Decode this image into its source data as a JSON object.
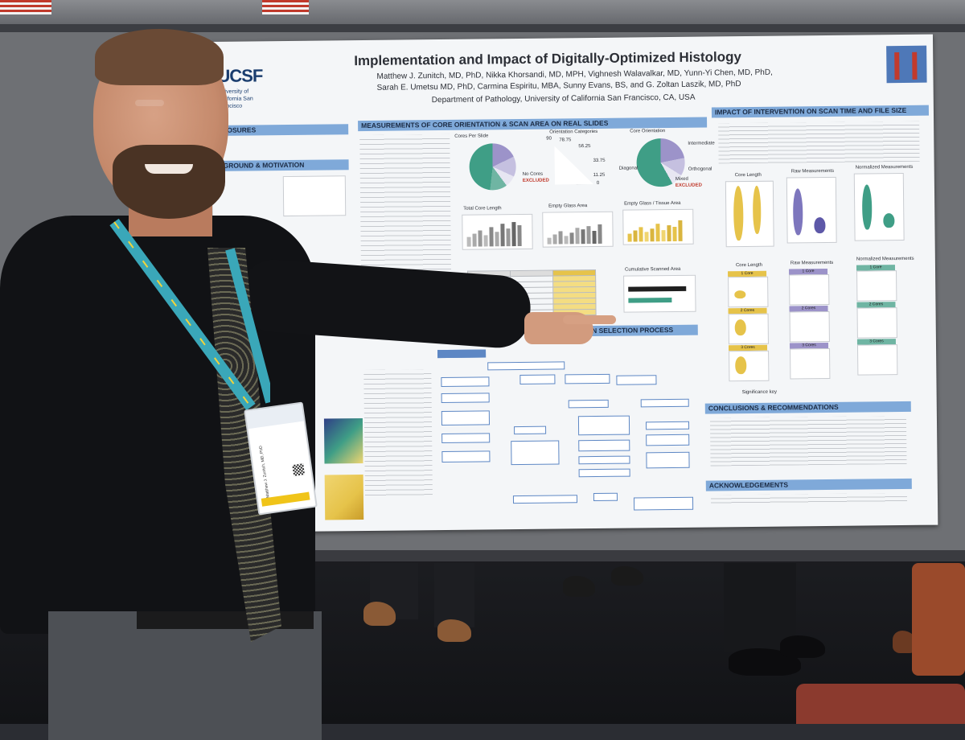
{
  "poster": {
    "title": "Implementation and Impact of Digitally-Optimized Histology",
    "authors_line1": "Matthew J. Zunitch, MD, PhD, Nikka Khorsandi, MD, MPH, Vighnesh Walavalkar, MD, Yunn-Yi Chen, MD, PhD,",
    "authors_line2": "Sarah E. Umetsu MD, PhD, Carmina Espiritu, MBA, Sunny Evans, BS, and G. Zoltan Laszik, MD, PhD",
    "department": "Department of Pathology, University of California San Francisco, CA, USA",
    "logo_text": "UCSF",
    "logo_sub": "University of California San Francisco",
    "sections": {
      "disclosures": "LOSURES",
      "background": "GROUND & MOTIVATION",
      "measurements": "MEASUREMENTS OF CORE ORIENTATION & SCAN AREA ON REAL SLIDES",
      "impact": "IMPACT OF INTERVENTION ON SCAN TIME AND FILE SIZE",
      "selection": "NTION SELECTION PROCESS",
      "conclusions": "CONCLUSIONS & RECOMMENDATIONS",
      "acknowledgements": "ACKNOWLEDGEMENTS"
    },
    "chart_labels": {
      "cores_per_slide": "Cores Per Slide",
      "orientation_categories": "Orientation Categories",
      "core_orientation": "Core Orientation",
      "excluded": "EXCLUDED",
      "total_core_length": "Total Core Length",
      "empty_glass_area": "Empty Glass Area",
      "empty_glass_tissue": "Empty Glass / Tissue Area",
      "cumulative_scanned_area": "Cumulative Scanned Area",
      "core_length": "Core Length",
      "raw_measurements": "Raw Measurements",
      "normalized_measurements": "Normalized Measurements",
      "significance_key": "Significance key",
      "diagonal": "Diagonal",
      "orthogonal": "Orthogonal",
      "intermediate": "Intermediate",
      "mixed": "Mixed",
      "no_cores": "No Cores",
      "angle_90": "90",
      "angle_78": "78.75",
      "angle_56": "56.25",
      "angle_33": "33.75",
      "angle_11": "11.25",
      "angle_0": "0",
      "one_core": "1 Core",
      "two_cores": "2 Cores",
      "three_cores": "3 Cores"
    },
    "colors": {
      "header_blue": "#7fa9d9",
      "teal": "#3f9e86",
      "lavender": "#9c93c9",
      "gold": "#e6c34a",
      "poster_bg": "#f4f6f8"
    }
  },
  "badge": {
    "name": "Matthew J. Zunitch, MD, PhD"
  }
}
